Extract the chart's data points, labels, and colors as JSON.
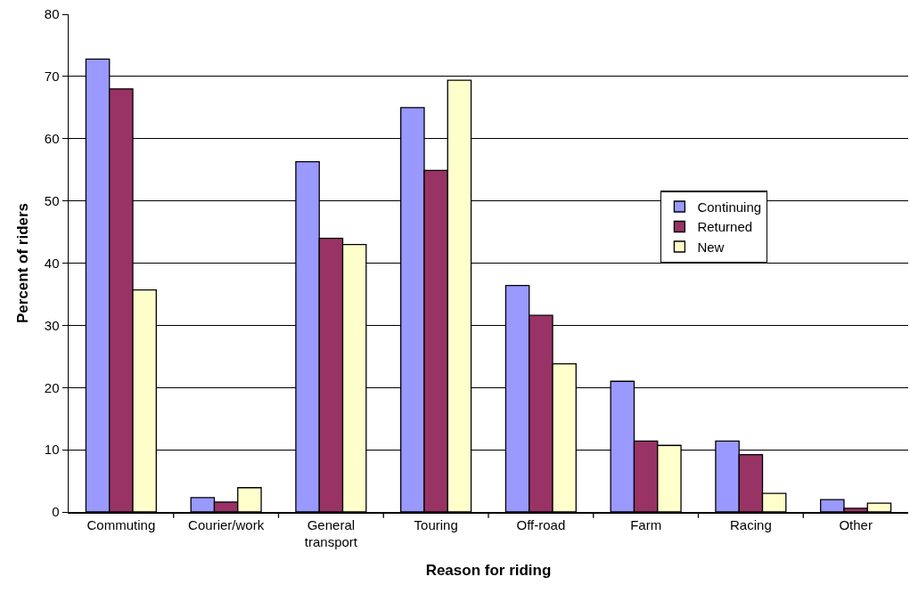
{
  "chart_data": {
    "type": "bar",
    "xlabel": "Reason for riding",
    "ylabel": "Percent of riders",
    "categories": [
      "Commuting",
      "Courier/work",
      "General transport",
      "Touring",
      "Off-road",
      "Farm",
      "Racing",
      "Other"
    ],
    "series": [
      {
        "name": "Continuing",
        "color": "#9999ff",
        "values": [
          72.8,
          2.3,
          56.3,
          65.0,
          36.4,
          21.0,
          11.4,
          2.0
        ]
      },
      {
        "name": "Returned",
        "color": "#993366",
        "values": [
          68.0,
          1.6,
          44.0,
          54.9,
          31.6,
          11.4,
          9.2,
          0.6
        ]
      },
      {
        "name": "New",
        "color": "#ffffcc",
        "values": [
          35.7,
          3.9,
          43.0,
          69.4,
          23.8,
          10.7,
          3.0,
          1.4
        ]
      }
    ],
    "ylim": [
      0,
      80
    ],
    "yticks": [
      0,
      10,
      20,
      30,
      40,
      50,
      60,
      70,
      80
    ],
    "grid": "y",
    "legend": "right"
  }
}
